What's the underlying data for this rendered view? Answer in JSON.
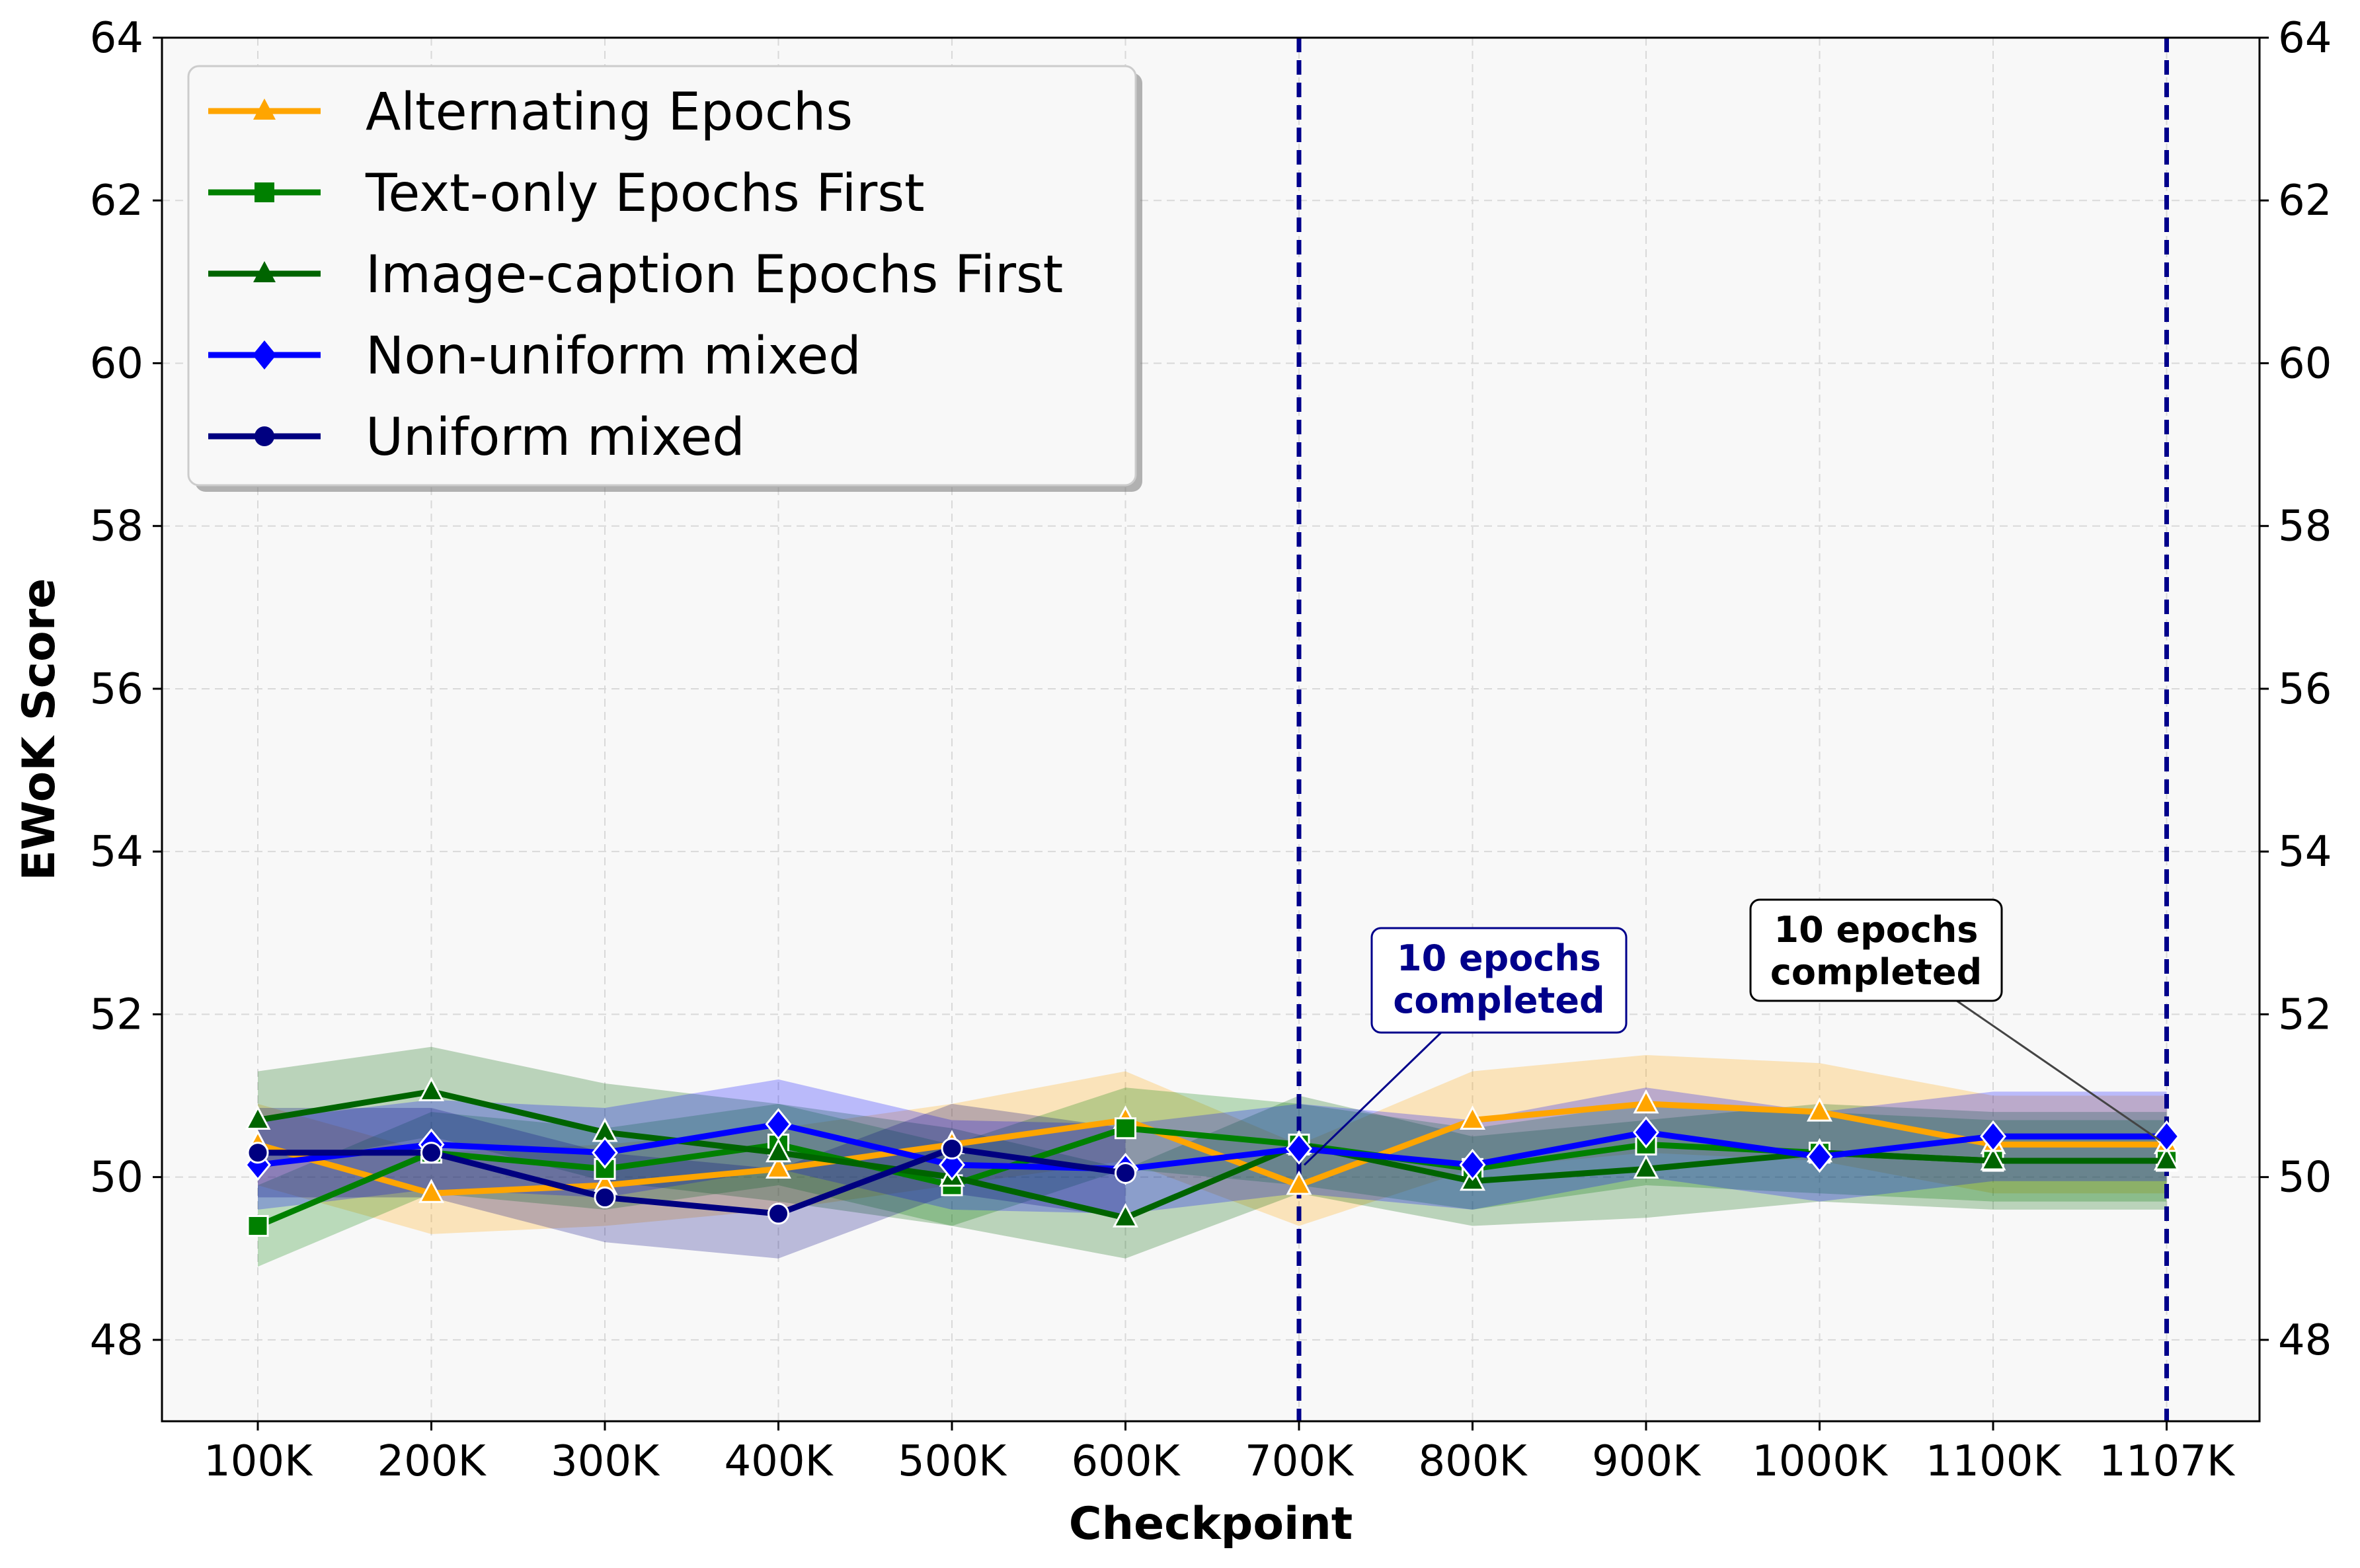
{
  "chart_data": {
    "type": "line",
    "title": "",
    "xlabel": "Checkpoint",
    "ylabel": "EWoK Score",
    "categories": [
      "100K",
      "200K",
      "300K",
      "400K",
      "500K",
      "600K",
      "700K",
      "800K",
      "900K",
      "1000K",
      "1100K",
      "1107K"
    ],
    "ylim": [
      47,
      64
    ],
    "yticks": [
      48,
      50,
      52,
      54,
      56,
      58,
      60,
      62,
      64
    ],
    "grid": true,
    "legend_position": "top-left",
    "series": [
      {
        "name": "Alternating Epochs",
        "color": "#FFA500",
        "marker": "triangle",
        "values": [
          50.4,
          49.8,
          49.9,
          50.1,
          50.4,
          50.7,
          49.9,
          50.7,
          50.9,
          50.8,
          50.4,
          50.4
        ],
        "lower": [
          49.9,
          49.3,
          49.4,
          49.6,
          49.9,
          50.2,
          49.4,
          50.1,
          50.3,
          50.2,
          49.8,
          49.8
        ],
        "upper": [
          50.9,
          50.3,
          50.4,
          50.6,
          50.9,
          51.3,
          50.4,
          51.3,
          51.5,
          51.4,
          51.0,
          51.0
        ]
      },
      {
        "name": "Text-only Epochs First",
        "color": "#008000",
        "marker": "square",
        "values": [
          49.4,
          50.3,
          50.1,
          50.4,
          49.9,
          50.6,
          50.4,
          50.1,
          50.4,
          50.3,
          50.2,
          50.2
        ],
        "lower": [
          48.9,
          49.8,
          49.6,
          49.9,
          49.4,
          50.1,
          49.9,
          49.6,
          49.9,
          49.8,
          49.7,
          49.7
        ],
        "upper": [
          49.9,
          50.8,
          50.6,
          50.9,
          50.4,
          51.1,
          50.9,
          50.6,
          50.9,
          50.8,
          50.7,
          50.7
        ]
      },
      {
        "name": "Image-caption Epochs First",
        "color": "#006400",
        "marker": "triangle",
        "values": [
          50.7,
          51.05,
          50.55,
          50.3,
          50.0,
          49.5,
          50.4,
          49.95,
          50.1,
          50.3,
          50.2,
          50.2
        ],
        "lower": [
          50.1,
          50.5,
          49.95,
          49.7,
          49.4,
          49.0,
          49.8,
          49.4,
          49.5,
          49.7,
          49.6,
          49.6
        ],
        "upper": [
          51.3,
          51.6,
          51.15,
          50.9,
          50.6,
          50.1,
          51.0,
          50.5,
          50.7,
          50.9,
          50.8,
          50.8
        ]
      },
      {
        "name": "Non-uniform mixed",
        "color": "#0000FF",
        "marker": "diamond",
        "values": [
          50.15,
          50.4,
          50.3,
          50.65,
          50.15,
          50.1,
          50.35,
          50.15,
          50.55,
          50.25,
          50.5,
          50.5
        ],
        "lower": [
          49.6,
          49.85,
          49.75,
          50.1,
          49.6,
          49.55,
          49.8,
          49.6,
          50.0,
          49.7,
          49.95,
          49.95
        ],
        "upper": [
          50.7,
          50.95,
          50.85,
          51.2,
          50.7,
          50.65,
          50.9,
          50.7,
          51.1,
          50.8,
          51.05,
          51.05
        ]
      },
      {
        "name": "Uniform mixed",
        "color": "#000080",
        "marker": "circle",
        "values": [
          50.3,
          50.3,
          49.75,
          49.55,
          50.35,
          50.05,
          null,
          null,
          null,
          null,
          null,
          null
        ],
        "lower": [
          49.75,
          49.75,
          49.2,
          49.0,
          49.8,
          49.5,
          null,
          null,
          null,
          null,
          null,
          null
        ],
        "upper": [
          50.85,
          50.85,
          50.3,
          50.1,
          50.9,
          50.6,
          null,
          null,
          null,
          null,
          null,
          null
        ]
      }
    ],
    "vlines": [
      {
        "at": "700K",
        "color": "#00008B"
      },
      {
        "at": "1107K",
        "color": "#00008B"
      }
    ],
    "annotations": [
      {
        "line1": "10 epochs",
        "line2": "completed",
        "at": "700K",
        "value": 50.1,
        "color": "#00008B"
      },
      {
        "line1": "10 epochs",
        "line2": "completed",
        "at": "1107K",
        "value": 50.4,
        "color": "#000000"
      }
    ]
  }
}
